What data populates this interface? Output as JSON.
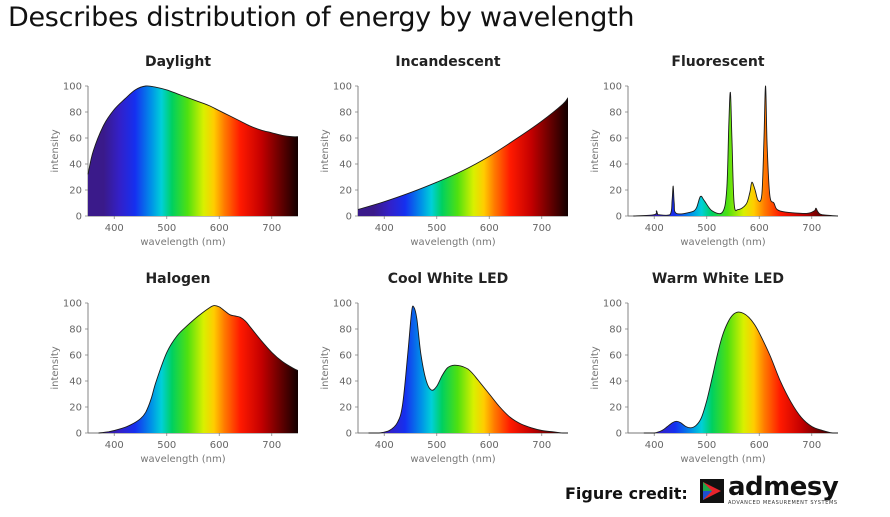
{
  "slide_title": "Describes distribution of energy by wavelength",
  "credit": {
    "label": "Figure credit:",
    "logo_word": "admesy",
    "logo_tagline": "ADVANCED MEASUREMENT SYSTEMS"
  },
  "chart_data": [
    {
      "type": "area",
      "title": "Daylight",
      "xlabel": "wavelength (nm)",
      "ylabel": "intensity",
      "xlim": [
        350,
        750
      ],
      "ylim": [
        0,
        100
      ],
      "xticks": [
        400,
        500,
        600,
        700
      ],
      "yticks": [
        0,
        20,
        40,
        60,
        80,
        100
      ],
      "x": [
        350,
        360,
        380,
        400,
        420,
        440,
        460,
        480,
        500,
        520,
        540,
        560,
        580,
        600,
        620,
        640,
        660,
        680,
        700,
        720,
        740,
        750
      ],
      "y": [
        32,
        50,
        70,
        82,
        90,
        97,
        100,
        99,
        97,
        94,
        91,
        88,
        85,
        81,
        77,
        73,
        69,
        66,
        64,
        62,
        61,
        61
      ]
    },
    {
      "type": "area",
      "title": "Incandescent",
      "xlabel": "wavelength (nm)",
      "ylabel": "intensity",
      "xlim": [
        350,
        750
      ],
      "ylim": [
        0,
        100
      ],
      "xticks": [
        400,
        500,
        600,
        700
      ],
      "yticks": [
        0,
        20,
        40,
        60,
        80,
        100
      ],
      "x": [
        350,
        400,
        450,
        500,
        550,
        600,
        650,
        700,
        740,
        750
      ],
      "y": [
        5,
        11,
        18,
        26,
        35,
        46,
        59,
        73,
        86,
        91
      ]
    },
    {
      "type": "area",
      "title": "Fluorescent",
      "xlabel": "wavelength (nm)",
      "ylabel": "intensity",
      "xlim": [
        350,
        750
      ],
      "ylim": [
        0,
        100
      ],
      "xticks": [
        400,
        500,
        600,
        700
      ],
      "yticks": [
        0,
        20,
        40,
        60,
        80,
        100
      ],
      "x": [
        360,
        400,
        404,
        406,
        408,
        430,
        434,
        436,
        438,
        442,
        470,
        480,
        488,
        495,
        510,
        530,
        538,
        542,
        545,
        548,
        552,
        560,
        575,
        582,
        586,
        592,
        598,
        605,
        609,
        612,
        615,
        620,
        628,
        634,
        650,
        690,
        705,
        708,
        712,
        720,
        750
      ],
      "y": [
        0,
        1,
        4,
        2,
        1,
        1,
        12,
        23,
        10,
        2,
        3,
        6,
        15,
        12,
        4,
        3,
        20,
        70,
        95,
        60,
        10,
        5,
        9,
        18,
        26,
        20,
        12,
        17,
        60,
        100,
        55,
        16,
        10,
        5,
        3,
        2,
        4,
        6,
        3,
        1,
        0
      ]
    },
    {
      "type": "area",
      "title": "Halogen",
      "xlabel": "wavelength (nm)",
      "ylabel": "intensity",
      "xlim": [
        350,
        750
      ],
      "ylim": [
        0,
        100
      ],
      "xticks": [
        400,
        500,
        600,
        700
      ],
      "yticks": [
        0,
        20,
        40,
        60,
        80,
        100
      ],
      "x": [
        370,
        390,
        410,
        430,
        450,
        460,
        470,
        480,
        500,
        520,
        540,
        560,
        580,
        590,
        600,
        610,
        620,
        630,
        640,
        650,
        660,
        680,
        700,
        720,
        740,
        750
      ],
      "y": [
        0,
        1,
        3,
        6,
        11,
        16,
        26,
        40,
        62,
        75,
        83,
        90,
        96,
        98,
        97,
        94,
        91,
        90,
        89,
        86,
        81,
        71,
        62,
        55,
        50,
        48
      ]
    },
    {
      "type": "area",
      "title": "Cool White LED",
      "xlabel": "wavelength (nm)",
      "ylabel": "intensity",
      "xlim": [
        350,
        750
      ],
      "ylim": [
        0,
        100
      ],
      "xticks": [
        400,
        500,
        600,
        700
      ],
      "yticks": [
        0,
        20,
        40,
        60,
        80,
        100
      ],
      "x": [
        370,
        390,
        410,
        425,
        435,
        445,
        452,
        456,
        462,
        470,
        480,
        490,
        500,
        510,
        520,
        530,
        540,
        550,
        560,
        570,
        580,
        600,
        620,
        640,
        660,
        680,
        700,
        720,
        740,
        750
      ],
      "y": [
        0,
        0,
        2,
        8,
        22,
        62,
        93,
        97,
        88,
        60,
        40,
        33,
        36,
        44,
        50,
        52,
        52,
        51,
        49,
        45,
        40,
        30,
        20,
        12,
        7,
        4,
        2,
        1,
        0,
        0
      ]
    },
    {
      "type": "area",
      "title": "Warm White LED",
      "xlabel": "wavelength (nm)",
      "ylabel": "intensity",
      "xlim": [
        350,
        750
      ],
      "ylim": [
        0,
        100
      ],
      "xticks": [
        400,
        500,
        600,
        700
      ],
      "yticks": [
        0,
        20,
        40,
        60,
        80,
        100
      ],
      "x": [
        380,
        400,
        415,
        425,
        435,
        442,
        450,
        460,
        470,
        480,
        490,
        500,
        510,
        520,
        530,
        540,
        550,
        560,
        570,
        580,
        590,
        600,
        620,
        640,
        660,
        680,
        700,
        720,
        740,
        750
      ],
      "y": [
        0,
        0,
        2,
        5,
        8,
        9,
        8,
        5,
        4,
        6,
        12,
        25,
        42,
        60,
        75,
        85,
        91,
        93,
        92,
        89,
        84,
        77,
        60,
        40,
        24,
        12,
        5,
        2,
        0,
        0
      ]
    }
  ]
}
